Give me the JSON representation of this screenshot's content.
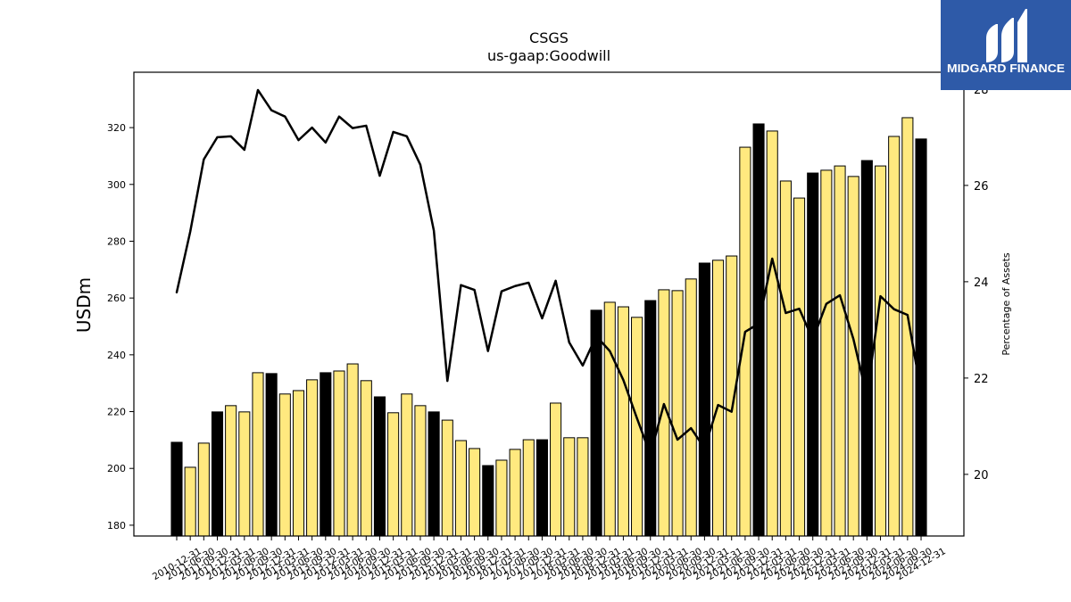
{
  "chart_data": {
    "type": "bar",
    "title": "CSGS",
    "subtitle": "us-gaap:Goodwill",
    "ylabel": "USDm",
    "y2label": "Percentage of Assets",
    "x": [
      "2010-12-31",
      "2011-06-30",
      "2011-09-30",
      "2011-12-31",
      "2012-03-31",
      "2012-06-30",
      "2012-09-30",
      "2012-12-31",
      "2013-03-31",
      "2013-06-30",
      "2013-09-30",
      "2013-12-31",
      "2014-03-31",
      "2014-06-30",
      "2014-09-30",
      "2014-12-31",
      "2015-03-31",
      "2015-06-30",
      "2015-09-30",
      "2015-12-31",
      "2016-03-31",
      "2016-06-30",
      "2016-09-30",
      "2016-12-31",
      "2017-03-31",
      "2017-06-30",
      "2017-09-30",
      "2017-12-31",
      "2018-03-31",
      "2018-06-30",
      "2018-09-30",
      "2018-12-31",
      "2019-03-31",
      "2019-06-30",
      "2019-09-30",
      "2019-12-31",
      "2020-03-31",
      "2020-06-30",
      "2020-09-30",
      "2020-12-31",
      "2021-03-31",
      "2021-06-30",
      "2021-09-30",
      "2021-12-31",
      "2022-03-31",
      "2022-06-30",
      "2022-09-30",
      "2022-12-31",
      "2023-03-31",
      "2023-06-30",
      "2023-09-30",
      "2023-12-31",
      "2024-03-31",
      "2024-06-30",
      "2024-09-30",
      "2024-12-31"
    ],
    "series": [
      {
        "type": "bar",
        "axis": "left",
        "values": [
          209.2,
          200.4,
          208.9,
          219.9,
          222.1,
          219.9,
          233.7,
          233.4,
          226.2,
          227.4,
          231.2,
          233.7,
          234.3,
          236.8,
          230.9,
          225.2,
          219.6,
          226.2,
          222.1,
          219.9,
          217.0,
          209.8,
          207.0,
          201.0,
          202.9,
          206.7,
          210.1,
          210.1,
          223.0,
          210.8,
          210.8,
          255.7,
          258.5,
          256.9,
          253.2,
          259.1,
          262.9,
          262.6,
          266.7,
          272.3,
          273.3,
          274.8,
          313.1,
          321.3,
          318.8,
          301.2,
          295.2,
          304.0,
          305.0,
          306.5,
          302.8,
          308.4,
          306.5,
          316.9,
          323.5,
          316.0
        ]
      },
      {
        "type": "line",
        "axis": "right",
        "values": [
          23.78,
          25.04,
          26.54,
          27.0,
          27.02,
          26.74,
          27.98,
          27.56,
          27.43,
          26.94,
          27.2,
          26.89,
          27.43,
          27.19,
          27.24,
          26.2,
          27.11,
          27.02,
          26.43,
          25.06,
          21.94,
          23.93,
          23.83,
          22.56,
          23.8,
          23.91,
          23.98,
          23.24,
          24.02,
          22.74,
          22.26,
          22.87,
          22.56,
          21.96,
          21.17,
          20.41,
          21.46,
          20.72,
          20.96,
          20.54,
          21.44,
          21.3,
          22.96,
          23.13,
          24.48,
          23.35,
          23.44,
          22.8,
          23.54,
          23.72,
          22.81,
          21.61,
          23.7,
          23.43,
          23.31,
          21.7
        ]
      }
    ],
    "ylim": [
      176.2,
      339.5
    ],
    "yticks": [
      180,
      200,
      220,
      240,
      260,
      280,
      300,
      320
    ],
    "y2lim": [
      18.72,
      28.35
    ],
    "y2ticks": [
      20,
      22,
      24,
      26,
      28
    ],
    "grid": false,
    "legend": "none",
    "colors": {
      "bar": "#ffe97f",
      "bar_year_end": "#000000",
      "bar_edge": "#000000",
      "line": "#000000"
    }
  },
  "logo": {
    "text": "MIDGARD FINANCE",
    "background": "#2e5aa8",
    "icon": "midgard-logo-icon"
  }
}
